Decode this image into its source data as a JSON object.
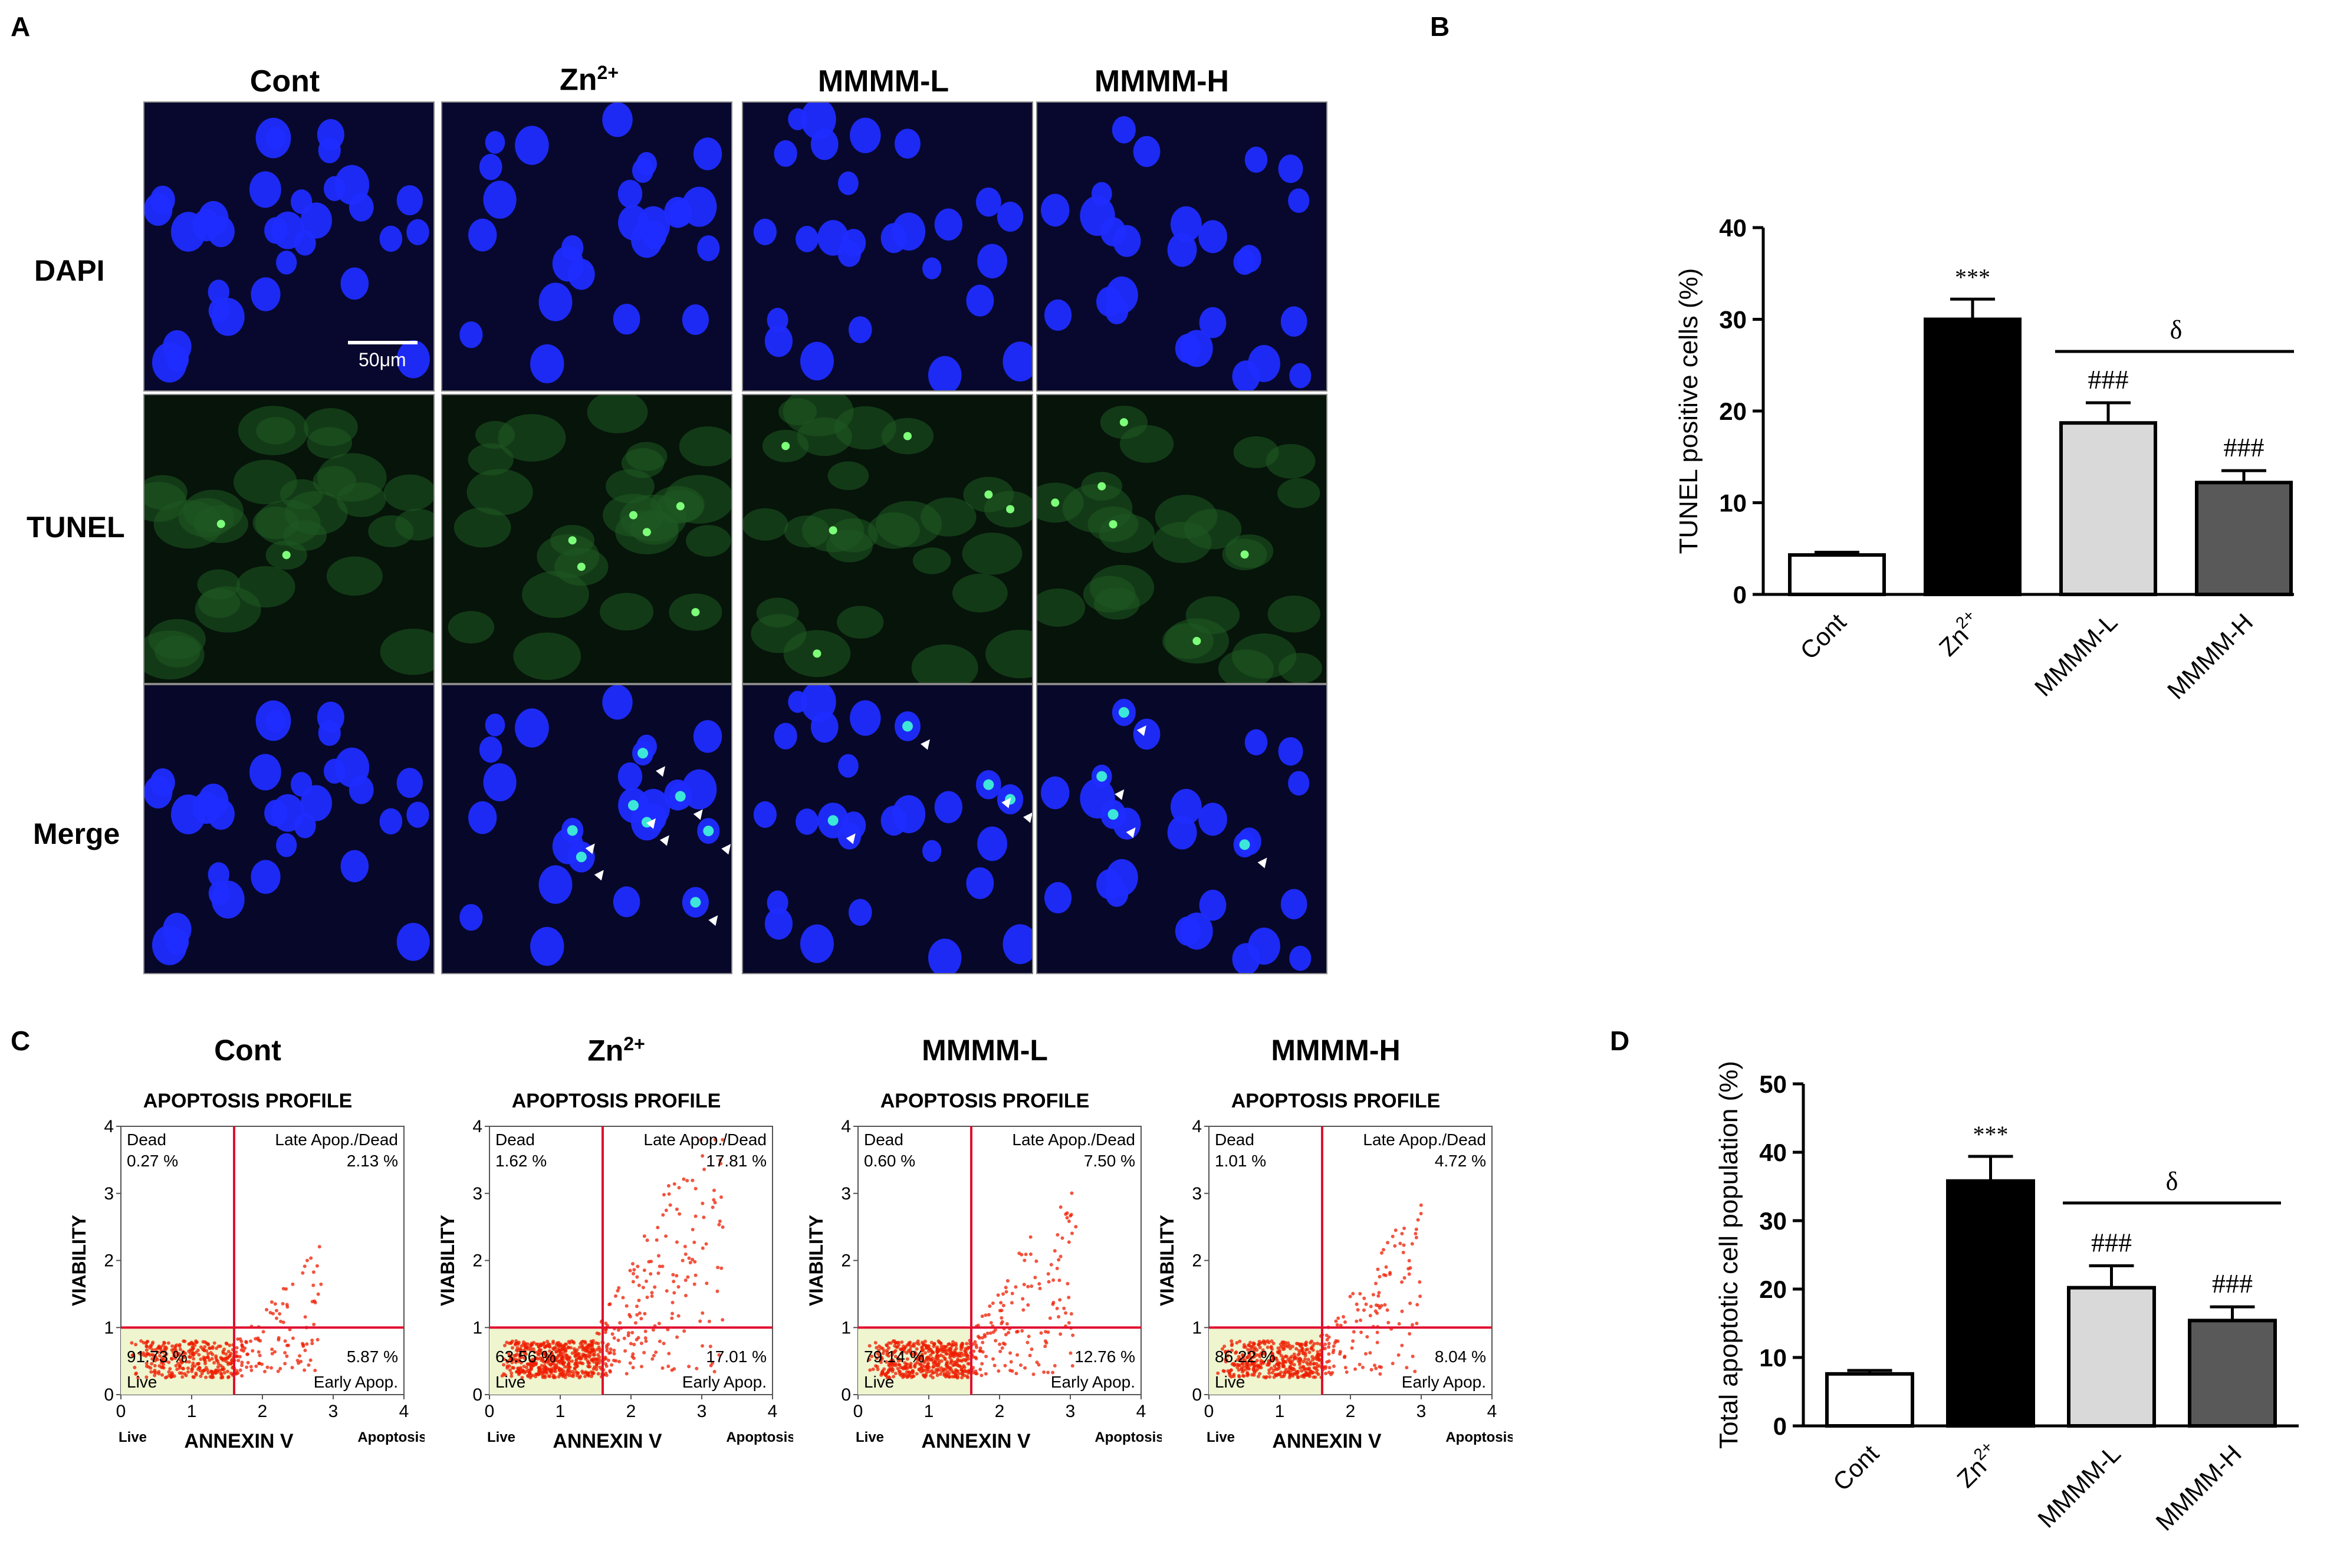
{
  "panel_labels": {
    "a": "A",
    "b": "B",
    "c": "C",
    "d": "D"
  },
  "panel_a": {
    "groups": [
      {
        "label": "Cont",
        "sup": ""
      },
      {
        "label": "Zn",
        "sup": "2+"
      },
      {
        "label": "MMMM-L",
        "sup": ""
      },
      {
        "label": "MMMM-H",
        "sup": ""
      }
    ],
    "rows": [
      "DAPI",
      "TUNEL",
      "Merge"
    ],
    "scale_bar": "50μm"
  },
  "panel_c": {
    "subtitle": "APOPTOSIS PROFILE",
    "xlabel": "ANNEXIN V",
    "ylabel": "VIABILITY",
    "x_left": "Live",
    "x_right": "Apoptosis",
    "ticks": [
      "0",
      "1",
      "2",
      "3",
      "4"
    ],
    "quadrant_names": {
      "dead": "Dead",
      "late": "Late Apop./Dead",
      "live": "Live",
      "early": "Early Apop."
    },
    "plots": [
      {
        "title": "Cont",
        "sup": "",
        "dead": "0.27 %",
        "late": "2.13 %",
        "live": "91.73 %",
        "early": "5.87 %"
      },
      {
        "title": "Zn",
        "sup": "2+",
        "dead": "1.62 %",
        "late": "17.81 %",
        "live": "63.56 %",
        "early": "17.01 %"
      },
      {
        "title": "MMMM-L",
        "sup": "",
        "dead": "0.60 %",
        "late": "7.50 %",
        "live": "79.14 %",
        "early": "12.76 %"
      },
      {
        "title": "MMMM-H",
        "sup": "",
        "dead": "1.01 %",
        "late": "4.72 %",
        "live": "86.22 %",
        "early": "8.04 %"
      }
    ]
  },
  "chart_data": [
    {
      "type": "bar",
      "panel": "B",
      "ylabel": "TUNEL positive cells (%)",
      "categories": [
        "Cont",
        "Zn2+",
        "MMMM-L",
        "MMMM-H"
      ],
      "category_sups": [
        "",
        "2+",
        "",
        ""
      ],
      "category_bases": [
        "Cont",
        "Zn",
        "MMMM-L",
        "MMMM-H"
      ],
      "values": [
        4.3,
        30.0,
        18.7,
        12.2
      ],
      "errors": [
        0.3,
        2.2,
        2.2,
        1.3
      ],
      "fills": [
        "#ffffff",
        "#000000",
        "#d9d9d9",
        "#595959"
      ],
      "sig": [
        "",
        "***",
        "###",
        "###"
      ],
      "ylim": [
        0,
        40
      ],
      "yticks": [
        0,
        10,
        20,
        30,
        40
      ],
      "bracket": {
        "from": 2,
        "to": 3,
        "label": "δ"
      }
    },
    {
      "type": "bar",
      "panel": "D",
      "ylabel": "Total apoptotic cell population (%)",
      "categories": [
        "Cont",
        "Zn2+",
        "MMMM-L",
        "MMMM-H"
      ],
      "category_sups": [
        "",
        "2+",
        "",
        ""
      ],
      "category_bases": [
        "Cont",
        "Zn",
        "MMMM-L",
        "MMMM-H"
      ],
      "values": [
        7.6,
        35.8,
        20.2,
        15.4
      ],
      "errors": [
        0.5,
        3.6,
        3.2,
        2.0
      ],
      "fills": [
        "#ffffff",
        "#000000",
        "#d9d9d9",
        "#595959"
      ],
      "sig": [
        "",
        "***",
        "###",
        "###"
      ],
      "ylim": [
        0,
        50
      ],
      "yticks": [
        0,
        10,
        20,
        30,
        40,
        50
      ],
      "bracket": {
        "from": 2,
        "to": 3,
        "label": "δ"
      }
    }
  ]
}
